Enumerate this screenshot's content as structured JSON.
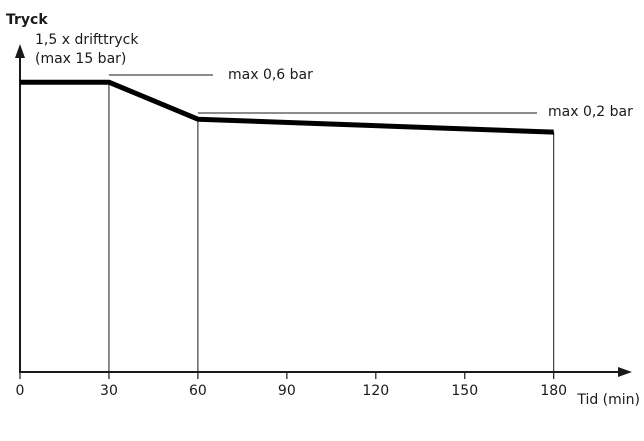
{
  "chart_data": {
    "type": "line",
    "title": "",
    "xlabel": "Tid (min)",
    "ylabel": "Tryck",
    "x_ticks": [
      "0",
      "30",
      "60",
      "90",
      "120",
      "150",
      "180"
    ],
    "xlim": [
      0,
      210
    ],
    "ylim": [
      0,
      1
    ],
    "grid": false,
    "series": [
      {
        "x": [
          0,
          30,
          60,
          180
        ],
        "y": [
          0.9,
          0.9,
          0.785,
          0.745
        ]
      }
    ],
    "annotations": [
      {
        "label_lines": [
          "1,5 x drifttryck",
          "(max 15 bar)"
        ],
        "x": 0,
        "y": 0.9
      },
      {
        "label_lines": [
          "max 0,6 bar"
        ],
        "x": 30,
        "y": 0.9
      },
      {
        "label_lines": [
          "max 0,2 bar"
        ],
        "x": 60,
        "y": 0.785
      }
    ]
  }
}
